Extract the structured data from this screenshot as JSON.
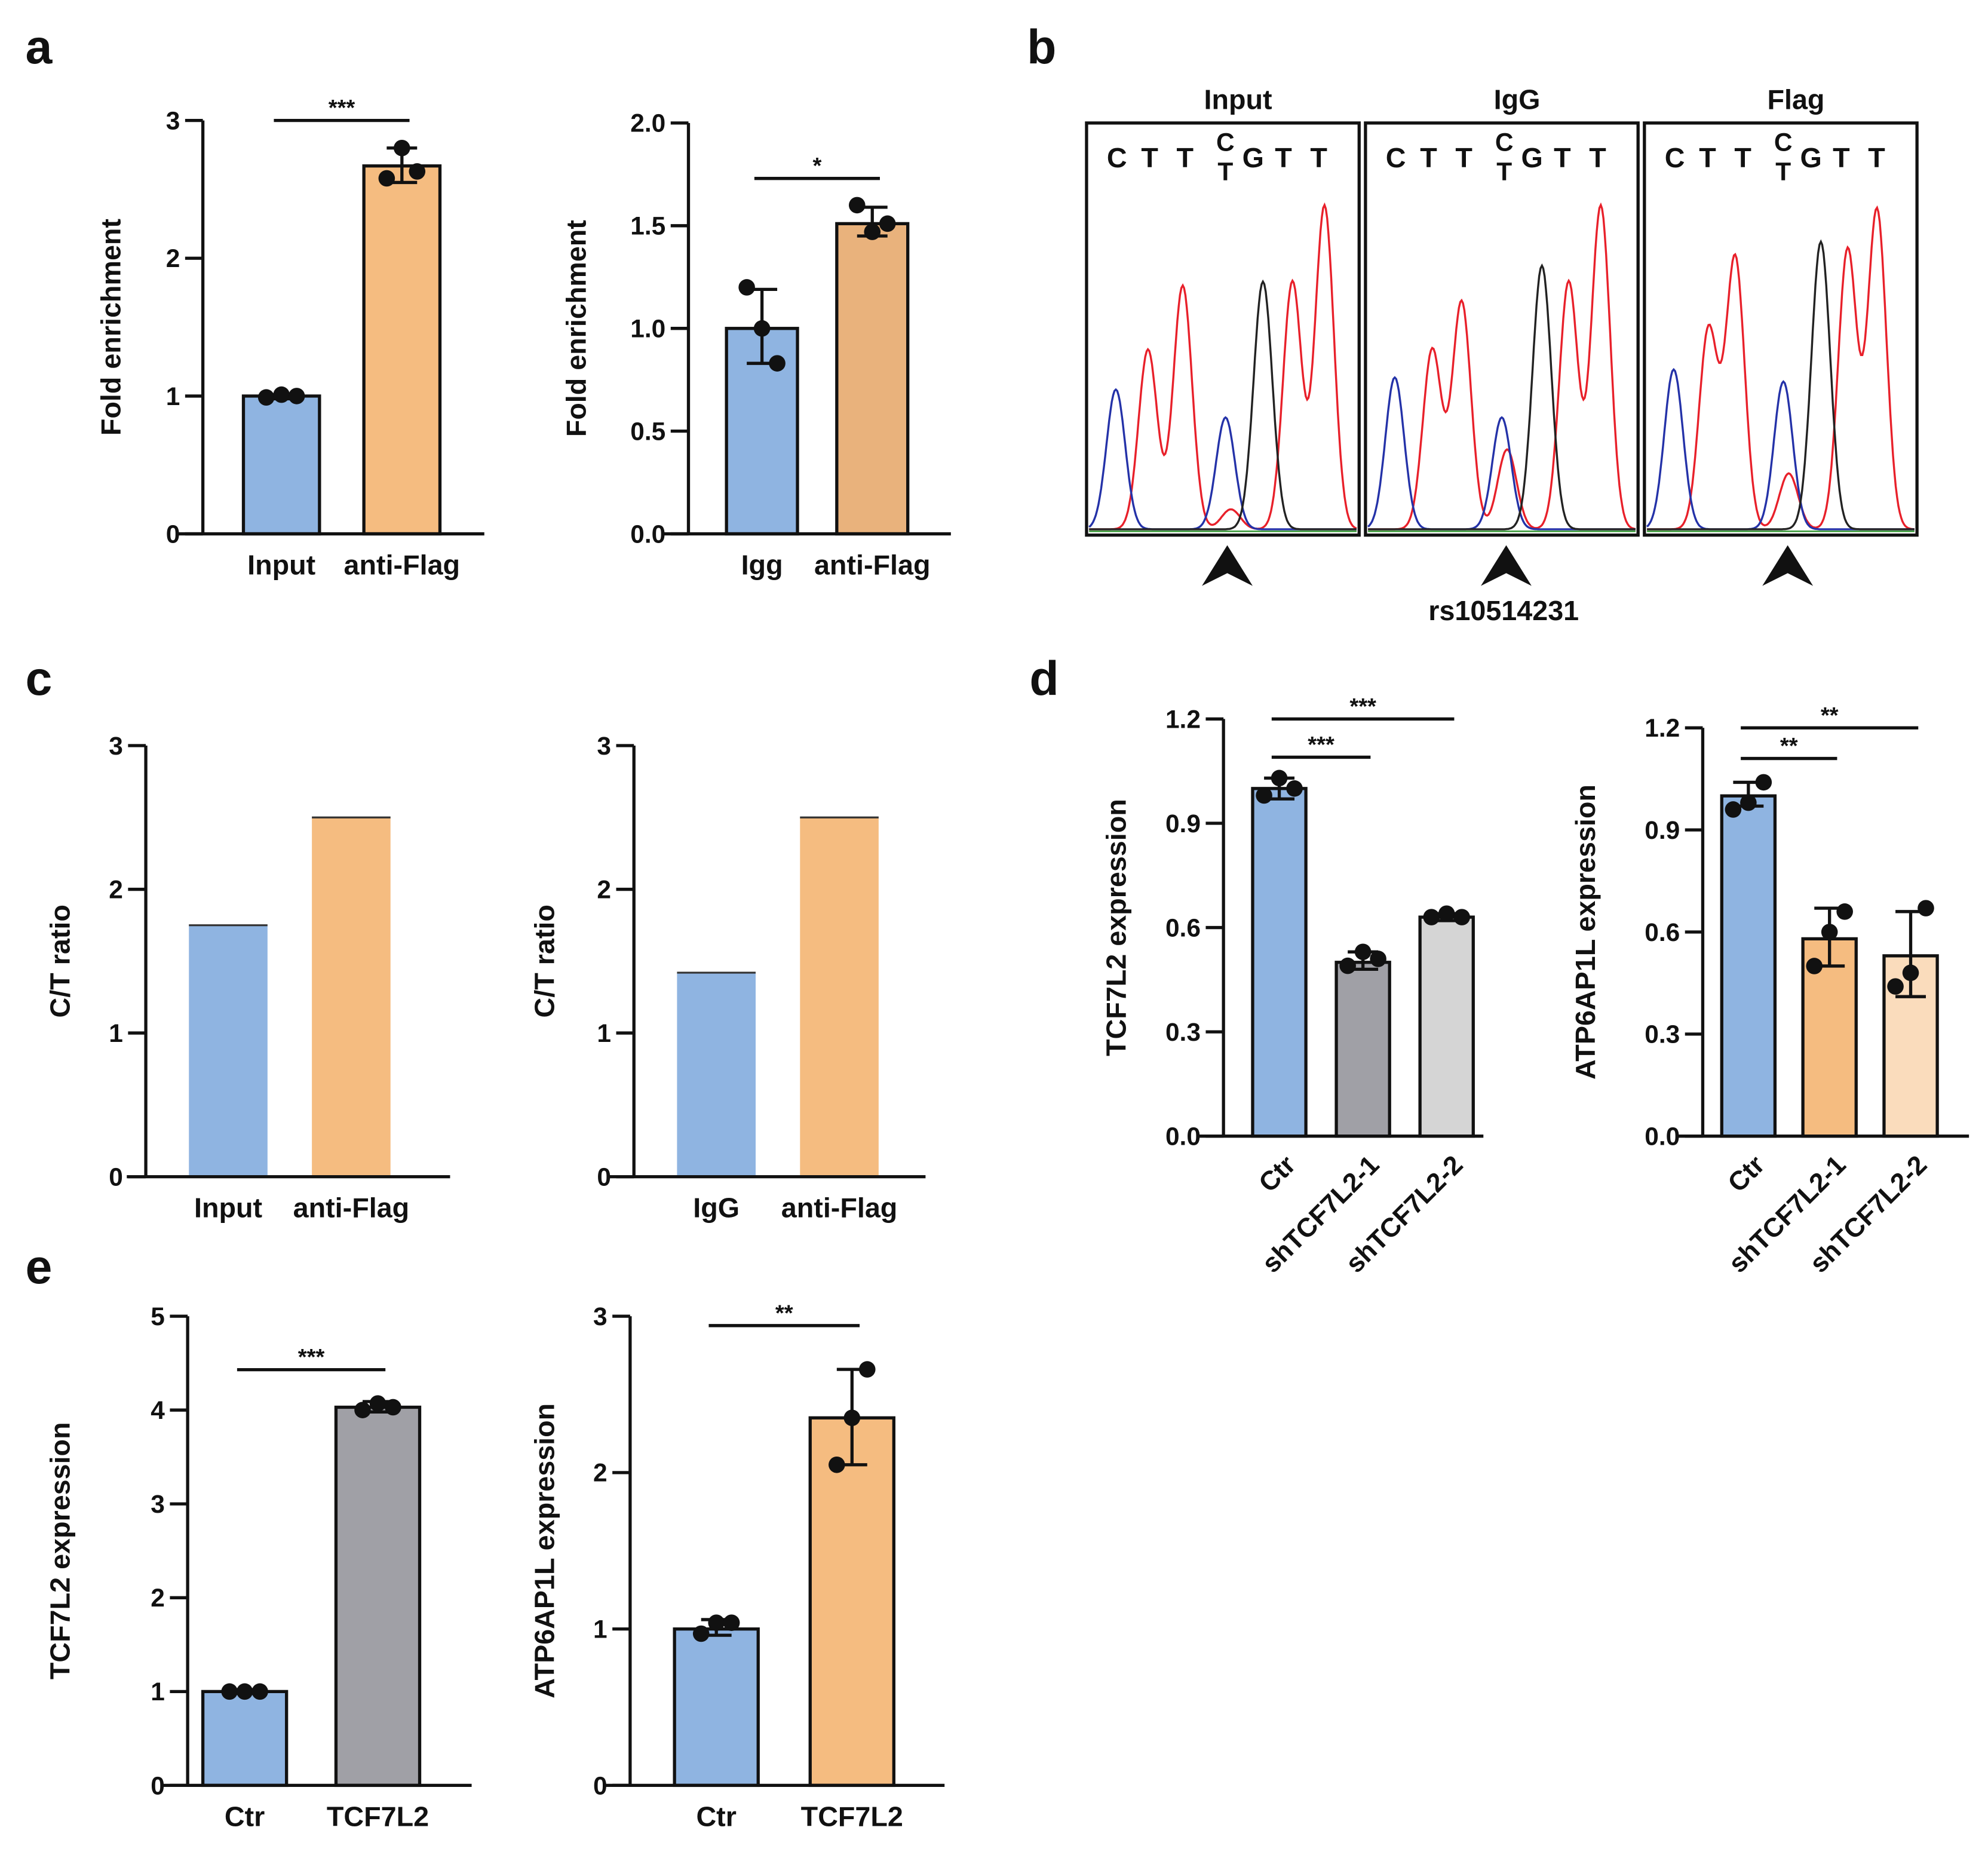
{
  "panel_letters": [
    "a",
    "b",
    "c",
    "d",
    "e"
  ],
  "colors": {
    "blue": "#8fb4e1",
    "orange": "#f5bc80",
    "orange_dark": "#e9b27c",
    "gray": "#a0a0a6",
    "light_gray": "#d5d5d5",
    "peach": "#fadcbc",
    "trace_red": "#e8202a",
    "trace_blue": "#2432a8",
    "trace_black": "#222222"
  },
  "chart_data": [
    {
      "id": "a1",
      "type": "bar",
      "ylabel": "Fold enrichment",
      "ylim": [
        0,
        3
      ],
      "yticks": [
        "0",
        "1",
        "2",
        "3"
      ],
      "categories": [
        "Input",
        "anti-Flag"
      ],
      "values": [
        1.0,
        2.67
      ],
      "err": [
        [
          0.98,
          1.01
        ],
        [
          2.55,
          2.8
        ]
      ],
      "points": [
        [
          0.99,
          1.01,
          1.0
        ],
        [
          2.58,
          2.8,
          2.63
        ]
      ],
      "colors": [
        "blue",
        "orange"
      ],
      "significance": [
        {
          "from": 0,
          "to": 1,
          "label": "***",
          "y": 3.0
        }
      ]
    },
    {
      "id": "a2",
      "type": "bar",
      "ylabel": "Fold enrichment",
      "ylim": [
        0,
        2
      ],
      "yticks": [
        "0.0",
        "0.5",
        "1.0",
        "1.5",
        "2.0"
      ],
      "categories": [
        "Igg",
        "anti-Flag"
      ],
      "values": [
        1.0,
        1.51
      ],
      "err": [
        [
          0.83,
          1.19
        ],
        [
          1.45,
          1.59
        ]
      ],
      "points": [
        [
          1.2,
          1.0,
          0.83
        ],
        [
          1.6,
          1.47,
          1.51
        ]
      ],
      "colors": [
        "blue",
        "orange_dark"
      ],
      "significance": [
        {
          "from": 0,
          "to": 1,
          "label": "*",
          "y": 1.73
        }
      ]
    },
    {
      "id": "b",
      "type": "chromatogram",
      "titles": [
        "Input",
        "IgG",
        "Flag"
      ],
      "bases": [
        "C",
        "T",
        "T",
        "C/T",
        "G",
        "T",
        "T"
      ],
      "snp_label": "rs10514231",
      "peaks": [
        [
          {
            "c": "blue",
            "p": 0.1,
            "h": 0.35
          },
          {
            "c": "red",
            "p": 0.22,
            "h": 0.45
          },
          {
            "c": "red",
            "p": 0.35,
            "h": 0.61
          },
          {
            "c": "blue",
            "p": 0.51,
            "h": 0.28
          },
          {
            "c": "red",
            "p": 0.53,
            "h": 0.05
          },
          {
            "c": "black",
            "p": 0.65,
            "h": 0.62
          },
          {
            "c": "red",
            "p": 0.76,
            "h": 0.62
          },
          {
            "c": "red",
            "p": 0.88,
            "h": 0.81
          }
        ],
        [
          {
            "c": "blue",
            "p": 0.1,
            "h": 0.38
          },
          {
            "c": "red",
            "p": 0.24,
            "h": 0.45
          },
          {
            "c": "red",
            "p": 0.35,
            "h": 0.57
          },
          {
            "c": "blue",
            "p": 0.5,
            "h": 0.28
          },
          {
            "c": "red",
            "p": 0.52,
            "h": 0.2
          },
          {
            "c": "black",
            "p": 0.65,
            "h": 0.66
          },
          {
            "c": "red",
            "p": 0.75,
            "h": 0.62
          },
          {
            "c": "red",
            "p": 0.87,
            "h": 0.81
          }
        ],
        [
          {
            "c": "blue",
            "p": 0.1,
            "h": 0.4
          },
          {
            "c": "red",
            "p": 0.23,
            "h": 0.5
          },
          {
            "c": "red",
            "p": 0.33,
            "h": 0.68
          },
          {
            "c": "blue",
            "p": 0.51,
            "h": 0.37
          },
          {
            "c": "red",
            "p": 0.53,
            "h": 0.14
          },
          {
            "c": "black",
            "p": 0.65,
            "h": 0.72
          },
          {
            "c": "red",
            "p": 0.75,
            "h": 0.7
          },
          {
            "c": "red",
            "p": 0.86,
            "h": 0.8
          }
        ]
      ]
    },
    {
      "id": "c1",
      "type": "bar",
      "ylabel": "C/T ratio",
      "ylim": [
        0,
        3
      ],
      "yticks": [
        "0",
        "1",
        "2",
        "3"
      ],
      "categories": [
        "Input",
        "anti-Flag"
      ],
      "values": [
        1.75,
        2.5
      ],
      "colors": [
        "blue",
        "orange"
      ]
    },
    {
      "id": "c2",
      "type": "bar",
      "ylabel": "C/T ratio",
      "ylim": [
        0,
        3
      ],
      "yticks": [
        "0",
        "1",
        "2",
        "3"
      ],
      "categories": [
        "IgG",
        "anti-Flag"
      ],
      "values": [
        1.42,
        2.5
      ],
      "colors": [
        "blue",
        "orange"
      ]
    },
    {
      "id": "d1",
      "type": "bar",
      "ylabel": "TCF7L2 expression",
      "ylim": [
        0,
        1.2
      ],
      "yticks": [
        "0.0",
        "0.3",
        "0.6",
        "0.9",
        "1.2"
      ],
      "categories": [
        "Ctr",
        "shTCF7L2-1",
        "shTCF7L2-2"
      ],
      "values": [
        1.0,
        0.5,
        0.63
      ],
      "err": [
        [
          0.97,
          1.03
        ],
        [
          0.48,
          0.53
        ],
        [
          0.62,
          0.64
        ]
      ],
      "points": [
        [
          0.98,
          1.03,
          1.0
        ],
        [
          0.49,
          0.53,
          0.51
        ],
        [
          0.63,
          0.64,
          0.63
        ]
      ],
      "colors": [
        "blue",
        "gray",
        "light_gray"
      ],
      "significance": [
        {
          "from": 0,
          "to": 1,
          "label": "***",
          "y": 1.09
        },
        {
          "from": 0,
          "to": 2,
          "label": "***",
          "y": 1.2
        }
      ]
    },
    {
      "id": "d2",
      "type": "bar",
      "ylabel": "ATP6AP1L expression",
      "ylim": [
        0,
        1.2
      ],
      "yticks": [
        "0.0",
        "0.3",
        "0.6",
        "0.9",
        "1.2"
      ],
      "categories": [
        "Ctr",
        "shTCF7L2-1",
        "shTCF7L2-2"
      ],
      "values": [
        1.0,
        0.58,
        0.53
      ],
      "err": [
        [
          0.97,
          1.04
        ],
        [
          0.5,
          0.67
        ],
        [
          0.41,
          0.66
        ]
      ],
      "points": [
        [
          0.96,
          0.98,
          1.04
        ],
        [
          0.5,
          0.6,
          0.66
        ],
        [
          0.44,
          0.48,
          0.67
        ]
      ],
      "colors": [
        "blue",
        "orange",
        "peach"
      ],
      "significance": [
        {
          "from": 0,
          "to": 1,
          "label": "**",
          "y": 1.11
        },
        {
          "from": 0,
          "to": 2,
          "label": "**",
          "y": 1.2
        }
      ]
    },
    {
      "id": "e1",
      "type": "bar",
      "ylabel": "TCF7L2 expression",
      "ylim": [
        0,
        5
      ],
      "yticks": [
        "0",
        "1",
        "2",
        "3",
        "4",
        "5"
      ],
      "categories": [
        "Ctr",
        "TCF7L2"
      ],
      "values": [
        1.0,
        4.03
      ],
      "err": [
        [
          0.98,
          1.02
        ],
        [
          3.98,
          4.09
        ]
      ],
      "points": [
        [
          1.0,
          1.0,
          1.0
        ],
        [
          4.0,
          4.07,
          4.03
        ]
      ],
      "colors": [
        "blue",
        "gray"
      ],
      "significance": [
        {
          "from": 0,
          "to": 1,
          "label": "***",
          "y": 4.43
        }
      ]
    },
    {
      "id": "e2",
      "type": "bar",
      "ylabel": "ATP6AP1L expression",
      "ylim": [
        0,
        3
      ],
      "yticks": [
        "0",
        "1",
        "2",
        "3"
      ],
      "categories": [
        "Ctr",
        "TCF7L2"
      ],
      "values": [
        1.0,
        2.35
      ],
      "err": [
        [
          0.96,
          1.06
        ],
        [
          2.05,
          2.66
        ]
      ],
      "points": [
        [
          0.97,
          1.04,
          1.04
        ],
        [
          2.05,
          2.35,
          2.66
        ]
      ],
      "colors": [
        "blue",
        "orange"
      ],
      "significance": [
        {
          "from": 0,
          "to": 1,
          "label": "**",
          "y": 2.94
        }
      ]
    }
  ]
}
